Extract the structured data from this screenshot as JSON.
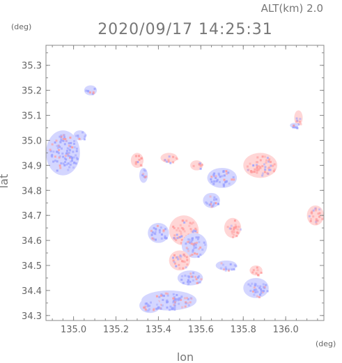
{
  "altitude_label": "ALT(km) 2.0",
  "timestamp": "2020/09/17 14:25:31",
  "y_unit": "(deg)",
  "x_unit": "(deg)",
  "colors": {
    "frame": "#888888",
    "positive": "#ff9a9a",
    "negative": "#9aa0ff",
    "positive_light": "#ffd6d6",
    "negative_light": "#d4d6ff"
  },
  "chart_data": {
    "type": "heatmap",
    "title": "2020/09/17 14:25:31",
    "subtitle": "ALT(km) 2.0",
    "xlabel": "lon",
    "ylabel": "lat",
    "xlim": [
      134.87,
      136.18
    ],
    "ylim": [
      34.28,
      35.38
    ],
    "x_ticks": [
      "135.0",
      "135.2",
      "135.4",
      "135.6",
      "135.8",
      "136.0"
    ],
    "y_ticks": [
      "34.3",
      "34.4",
      "34.5",
      "34.6",
      "34.7",
      "34.8",
      "34.9",
      "35.0",
      "35.1",
      "35.2",
      "35.3"
    ],
    "x_tick_values": [
      135.0,
      135.2,
      135.4,
      135.6,
      135.8,
      136.0
    ],
    "y_tick_values": [
      34.3,
      34.4,
      34.5,
      34.6,
      34.7,
      34.8,
      34.9,
      35.0,
      35.1,
      35.2,
      35.3
    ],
    "grid": false,
    "legend": "none",
    "regions": [
      {
        "lon": 134.95,
        "lat": 34.95,
        "rlon": 0.08,
        "rlat": 0.09,
        "value": -0.6
      },
      {
        "lon": 135.03,
        "lat": 35.02,
        "rlon": 0.03,
        "rlat": 0.02,
        "value": -0.5
      },
      {
        "lon": 135.08,
        "lat": 35.2,
        "rlon": 0.03,
        "rlat": 0.02,
        "value": -0.3
      },
      {
        "lon": 135.45,
        "lat": 34.36,
        "rlon": 0.13,
        "rlat": 0.04,
        "value": -0.7
      },
      {
        "lon": 135.36,
        "lat": 34.34,
        "rlon": 0.05,
        "rlat": 0.03,
        "value": -0.6
      },
      {
        "lon": 135.3,
        "lat": 34.92,
        "rlon": 0.03,
        "rlat": 0.03,
        "value": 0.5
      },
      {
        "lon": 135.45,
        "lat": 34.93,
        "rlon": 0.04,
        "rlat": 0.02,
        "value": 0.6
      },
      {
        "lon": 135.88,
        "lat": 34.9,
        "rlon": 0.08,
        "rlat": 0.05,
        "value": 0.6
      },
      {
        "lon": 135.7,
        "lat": 34.85,
        "rlon": 0.07,
        "rlat": 0.04,
        "value": -0.4
      },
      {
        "lon": 135.52,
        "lat": 34.64,
        "rlon": 0.07,
        "rlat": 0.06,
        "value": 0.4
      },
      {
        "lon": 135.57,
        "lat": 34.58,
        "rlon": 0.06,
        "rlat": 0.05,
        "value": -0.5
      },
      {
        "lon": 135.4,
        "lat": 34.63,
        "rlon": 0.05,
        "rlat": 0.04,
        "value": -0.4
      },
      {
        "lon": 135.5,
        "lat": 34.52,
        "rlon": 0.05,
        "rlat": 0.04,
        "value": 0.3
      },
      {
        "lon": 135.55,
        "lat": 34.45,
        "rlon": 0.06,
        "rlat": 0.03,
        "value": -0.5
      },
      {
        "lon": 135.72,
        "lat": 34.5,
        "rlon": 0.05,
        "rlat": 0.02,
        "value": -0.4
      },
      {
        "lon": 135.75,
        "lat": 34.65,
        "rlon": 0.04,
        "rlat": 0.04,
        "value": 0.4
      },
      {
        "lon": 135.65,
        "lat": 34.76,
        "rlon": 0.04,
        "rlat": 0.03,
        "value": -0.3
      },
      {
        "lon": 135.86,
        "lat": 34.41,
        "rlon": 0.06,
        "rlat": 0.04,
        "value": -0.6
      },
      {
        "lon": 135.86,
        "lat": 34.48,
        "rlon": 0.03,
        "rlat": 0.02,
        "value": 0.7
      },
      {
        "lon": 136.14,
        "lat": 34.7,
        "rlon": 0.04,
        "rlat": 0.04,
        "value": 0.6
      },
      {
        "lon": 136.06,
        "lat": 35.09,
        "rlon": 0.02,
        "rlat": 0.03,
        "value": 0.5
      },
      {
        "lon": 136.04,
        "lat": 35.06,
        "rlon": 0.02,
        "rlat": 0.01,
        "value": -0.6
      },
      {
        "lon": 135.33,
        "lat": 34.86,
        "rlon": 0.02,
        "rlat": 0.03,
        "value": -0.3
      },
      {
        "lon": 135.58,
        "lat": 34.9,
        "rlon": 0.03,
        "rlat": 0.02,
        "value": 0.4
      }
    ]
  }
}
